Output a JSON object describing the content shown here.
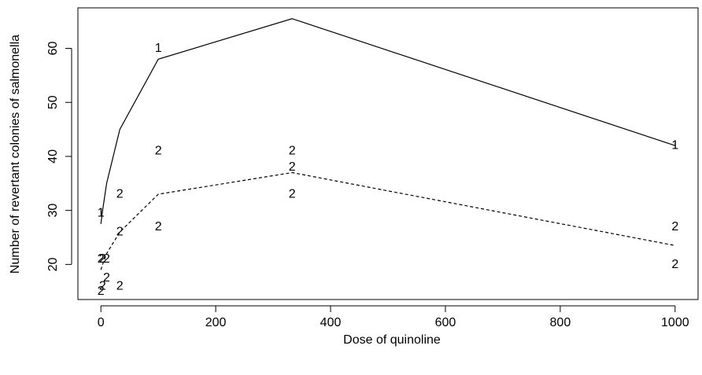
{
  "chart_data": {
    "type": "line",
    "title": "",
    "xlabel": "Dose of quinoline",
    "ylabel": "Number of revertant colonies of salmonella",
    "xlim": [
      -40,
      1040
    ],
    "ylim": [
      13.5,
      67.5
    ],
    "xticks": [
      0,
      200,
      400,
      600,
      800,
      1000
    ],
    "yticks": [
      20,
      30,
      40,
      50,
      60
    ],
    "grid": false,
    "legend": "none",
    "series": [
      {
        "label": "1",
        "line_style": "solid",
        "line_x": [
          0,
          3,
          10,
          33,
          100,
          333,
          1000
        ],
        "line_y": [
          27.5,
          30,
          35,
          45,
          58,
          65.5,
          42
        ],
        "label_points": [
          {
            "x": 0,
            "y": 29.5
          },
          {
            "x": 100,
            "y": 60
          },
          {
            "x": 1000,
            "y": 42
          }
        ]
      },
      {
        "label": "2",
        "line_style": "dashed",
        "line_x": [
          0,
          3,
          10,
          33,
          100,
          333,
          1000
        ],
        "line_y": [
          19,
          20,
          22,
          26,
          33,
          37,
          23.5
        ],
        "label_points": [
          {
            "x": 0,
            "y": 21
          },
          {
            "x": 0,
            "y": 15
          },
          {
            "x": 3,
            "y": 16
          },
          {
            "x": 3,
            "y": 21
          },
          {
            "x": 10,
            "y": 21
          },
          {
            "x": 10,
            "y": 17.5
          },
          {
            "x": 33,
            "y": 33
          },
          {
            "x": 33,
            "y": 26
          },
          {
            "x": 33,
            "y": 16
          },
          {
            "x": 100,
            "y": 41
          },
          {
            "x": 100,
            "y": 27
          },
          {
            "x": 333,
            "y": 41
          },
          {
            "x": 333,
            "y": 38
          },
          {
            "x": 333,
            "y": 33
          },
          {
            "x": 1000,
            "y": 27
          },
          {
            "x": 1000,
            "y": 20
          }
        ]
      }
    ]
  }
}
